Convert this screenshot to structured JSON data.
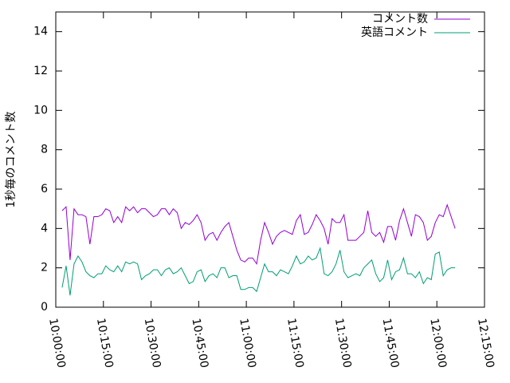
{
  "chart_data": {
    "type": "line",
    "ylabel": "1秒毎のコメント数",
    "x": [
      36120,
      36195,
      36270,
      36345,
      36420,
      36495,
      36570,
      36645,
      36720,
      36795,
      36870,
      36945,
      37020,
      37095,
      37170,
      37245,
      37320,
      37395,
      37470,
      37545,
      37620,
      37695,
      37770,
      37845,
      37920,
      37995,
      38070,
      38145,
      38220,
      38295,
      38370,
      38445,
      38520,
      38595,
      38670,
      38745,
      38820,
      38895,
      38970,
      39045,
      39120,
      39195,
      39270,
      39345,
      39420,
      39495,
      39570,
      39645,
      39720,
      39795,
      39870,
      39945,
      40020,
      40095,
      40170,
      40245,
      40320,
      40395,
      40470,
      40545,
      40620,
      40695,
      40770,
      40845,
      40920,
      40995,
      41070,
      41145,
      41220,
      41295,
      41370,
      41445,
      41520,
      41595,
      41670,
      41745,
      41820,
      41895,
      41970,
      42045,
      42120,
      42195,
      42270,
      42345,
      42420,
      42495,
      42570,
      42645,
      42720,
      42795,
      42870,
      42945,
      43020,
      43095,
      43170,
      43245,
      43320,
      43395,
      43470,
      43545
    ],
    "series": [
      {
        "name": "コメント数",
        "color": "#9400d3",
        "values": [
          4.9,
          5.1,
          2.4,
          5.0,
          4.7,
          4.7,
          4.6,
          3.2,
          4.6,
          4.6,
          4.7,
          5.0,
          4.9,
          4.3,
          4.6,
          4.3,
          5.1,
          4.9,
          5.1,
          4.8,
          5.0,
          5.0,
          4.8,
          4.6,
          4.7,
          5.0,
          5.0,
          4.7,
          5.0,
          4.8,
          4.0,
          4.3,
          4.2,
          4.4,
          4.7,
          4.3,
          3.4,
          3.7,
          3.8,
          3.4,
          3.8,
          4.1,
          4.3,
          3.6,
          2.9,
          2.4,
          2.3,
          2.5,
          2.5,
          2.2,
          3.4,
          4.3,
          3.8,
          3.2,
          3.6,
          3.8,
          3.9,
          3.8,
          3.7,
          4.4,
          4.7,
          3.7,
          3.8,
          4.2,
          4.7,
          4.4,
          4.0,
          3.2,
          4.5,
          4.3,
          4.3,
          4.7,
          3.4,
          3.4,
          3.4,
          3.6,
          3.8,
          4.9,
          3.8,
          3.6,
          3.8,
          3.3,
          4.1,
          4.1,
          3.4,
          4.4,
          5.0,
          4.3,
          3.6,
          4.7,
          4.6,
          4.3,
          3.4,
          3.6,
          4.3,
          4.7,
          4.6,
          5.2,
          4.6,
          4.0
        ]
      },
      {
        "name": "英語コメント",
        "color": "#009e73",
        "values": [
          1.0,
          2.1,
          0.6,
          2.2,
          2.6,
          2.3,
          1.8,
          1.6,
          1.5,
          1.7,
          1.7,
          2.1,
          1.9,
          1.8,
          2.1,
          1.8,
          2.3,
          2.2,
          2.3,
          2.2,
          1.4,
          1.6,
          1.7,
          1.9,
          1.9,
          1.6,
          1.9,
          2.0,
          1.7,
          1.8,
          2.0,
          1.6,
          1.2,
          1.3,
          1.8,
          1.9,
          1.3,
          1.6,
          1.7,
          1.5,
          2.0,
          2.0,
          1.5,
          1.6,
          1.6,
          0.9,
          0.9,
          1.0,
          1.0,
          0.8,
          1.5,
          2.2,
          1.8,
          1.8,
          1.6,
          1.9,
          1.8,
          1.7,
          2.1,
          2.6,
          2.2,
          2.3,
          2.6,
          2.4,
          2.5,
          3.0,
          1.7,
          1.6,
          1.8,
          2.2,
          2.9,
          1.8,
          1.5,
          1.6,
          1.7,
          1.6,
          2.0,
          2.2,
          2.4,
          1.7,
          1.3,
          1.5,
          2.4,
          1.4,
          1.8,
          1.9,
          2.5,
          1.7,
          1.7,
          1.5,
          1.8,
          1.2,
          1.5,
          1.4,
          2.7,
          2.8,
          1.6,
          1.9,
          2.0,
          2.0
        ]
      }
    ],
    "xlim": [
      36000,
      44100
    ],
    "xticks": [
      {
        "value": 36000,
        "label": "10:00:00"
      },
      {
        "value": 36900,
        "label": "10:15:00"
      },
      {
        "value": 37800,
        "label": "10:30:00"
      },
      {
        "value": 38700,
        "label": "10:45:00"
      },
      {
        "value": 39600,
        "label": "11:00:00"
      },
      {
        "value": 40500,
        "label": "11:15:00"
      },
      {
        "value": 41400,
        "label": "11:30:00"
      },
      {
        "value": 42300,
        "label": "11:45:00"
      },
      {
        "value": 43200,
        "label": "12:00:00"
      },
      {
        "value": 44100,
        "label": "12:15:00"
      }
    ],
    "ylim": [
      0,
      15
    ],
    "yticks": [
      0,
      2,
      4,
      6,
      8,
      10,
      12,
      14
    ],
    "grid": false,
    "legend": "top-right"
  }
}
